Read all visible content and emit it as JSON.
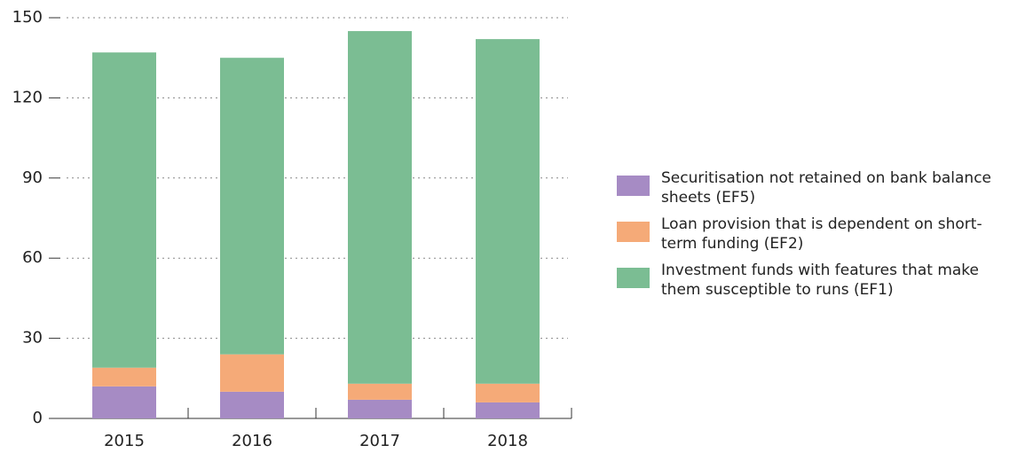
{
  "chart_data": {
    "type": "stacked_bar",
    "categories": [
      "2015",
      "2016",
      "2017",
      "2018"
    ],
    "series": [
      {
        "name": "Securitisation not retained on bank balance sheets (EF5)",
        "color": "#a68bc4",
        "values": [
          12,
          10,
          7,
          6
        ]
      },
      {
        "name": "Loan provision that is dependent on short-term funding (EF2)",
        "color": "#f5aa78",
        "values": [
          7,
          14,
          6,
          7
        ]
      },
      {
        "name": "Investment funds with features that make them susceptible to runs (EF1)",
        "color": "#7bbd93",
        "values": [
          118,
          111,
          132,
          129
        ]
      }
    ],
    "ylim": [
      0,
      150
    ],
    "yticks": [
      0,
      30,
      60,
      90,
      120,
      150
    ],
    "grid": true,
    "legend": "right"
  }
}
